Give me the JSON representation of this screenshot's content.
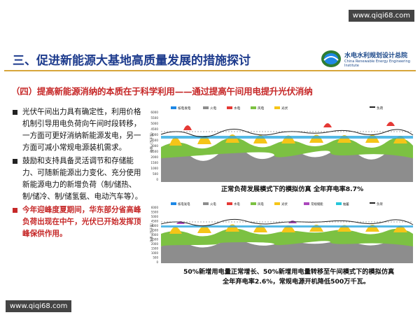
{
  "watermarks": {
    "top": "www.qiqi68.com",
    "bottom": "www.qiqi68.com"
  },
  "slide": {
    "title": "三、促进新能源大基地高质量发展的措施探讨",
    "logo_name": "水电水利规划设计总院",
    "logo_sub": "China Renewable Energy Engineering Institute",
    "subtitle": "（四）提高新能源消纳的本质在于科学利用——通过提高午间用电提升光伏消纳",
    "bullets": [
      {
        "text": "光伏午间出力具有确定性，利用价格机制引导用电负荷向午间时段转移，一方面可更好消纳新能源发电，另一方面可减小常规电源装机需求。",
        "style": "normal"
      },
      {
        "text": "鼓励和支持具备灵活调节和存储能力、可随新能源出力变化、充分使用新能源电力的新增负荷（制/储热、制/储冷、制/储氢氨、电动汽车等）。",
        "style": "normal"
      },
      {
        "text": "今年迎峰度夏期间，华东部分省高峰负荷出现在中午，光伏已开始发挥顶峰保供作用。",
        "style": "red"
      }
    ],
    "chart1": {
      "legend": [
        "核电发电",
        "火电",
        "水电",
        "风电",
        "光伏",
        "负荷"
      ],
      "y_ticks": [
        "6000",
        "5500",
        "5000",
        "4500",
        "4000",
        "3500",
        "3000",
        "2500",
        "2000",
        "1500",
        "1000",
        "500",
        "0"
      ],
      "ylabel": "功率（万千瓦）",
      "caption": "正常负荷发展模式下的模拟仿真    全年弃电率8.7%"
    },
    "chart2": {
      "legend": [
        "核电发电",
        "火电",
        "水电",
        "风电",
        "光伏",
        "常规储能",
        "抽蓄",
        "负荷"
      ],
      "y_ticks": [
        "6000",
        "5500",
        "5000",
        "4500",
        "4000",
        "3500",
        "3000",
        "2500",
        "2000",
        "1500",
        "1000",
        "500",
        "0"
      ],
      "ylabel": "功率（万千瓦）",
      "caption_line1": "50%新增用电量正常增长、50%新增用电量转移至午间模式下的模拟仿真",
      "caption_line2": "全年弃电率2.6%，常规电源开机降低500万千瓦。"
    }
  },
  "colors": {
    "title": "#1d3b8d",
    "red": "#c62828",
    "gold": "#d7a63b",
    "wind": "#7cc142",
    "solar": "#f5c518",
    "hydro": "#29a8e0",
    "thermal": "#777777",
    "peak": "#e53935"
  }
}
